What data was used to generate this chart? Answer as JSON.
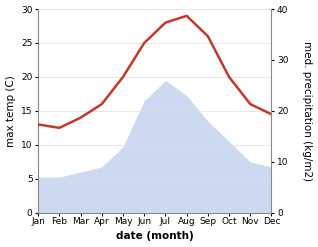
{
  "months": [
    "Jan",
    "Feb",
    "Mar",
    "Apr",
    "May",
    "Jun",
    "Jul",
    "Aug",
    "Sep",
    "Oct",
    "Nov",
    "Dec"
  ],
  "max_temp": [
    13,
    12.5,
    14,
    16,
    20,
    25,
    28,
    29,
    26,
    20,
    16,
    14.5
  ],
  "precipitation": [
    7,
    7,
    8,
    9,
    13,
    22,
    26,
    23,
    18,
    14,
    10,
    9
  ],
  "temp_color": "#c0392b",
  "precip_fill_color": "#ccd9f0",
  "temp_ylim": [
    0,
    30
  ],
  "precip_ylim": [
    0,
    40
  ],
  "temp_yticks": [
    0,
    5,
    10,
    15,
    20,
    25,
    30
  ],
  "precip_yticks": [
    0,
    10,
    20,
    30,
    40
  ],
  "xlabel": "date (month)",
  "ylabel_left": "max temp (C)",
  "ylabel_right": "med. precipitation (kg/m2)",
  "bg_color": "#ffffff",
  "label_fontsize": 7.5,
  "tick_fontsize": 6.5
}
